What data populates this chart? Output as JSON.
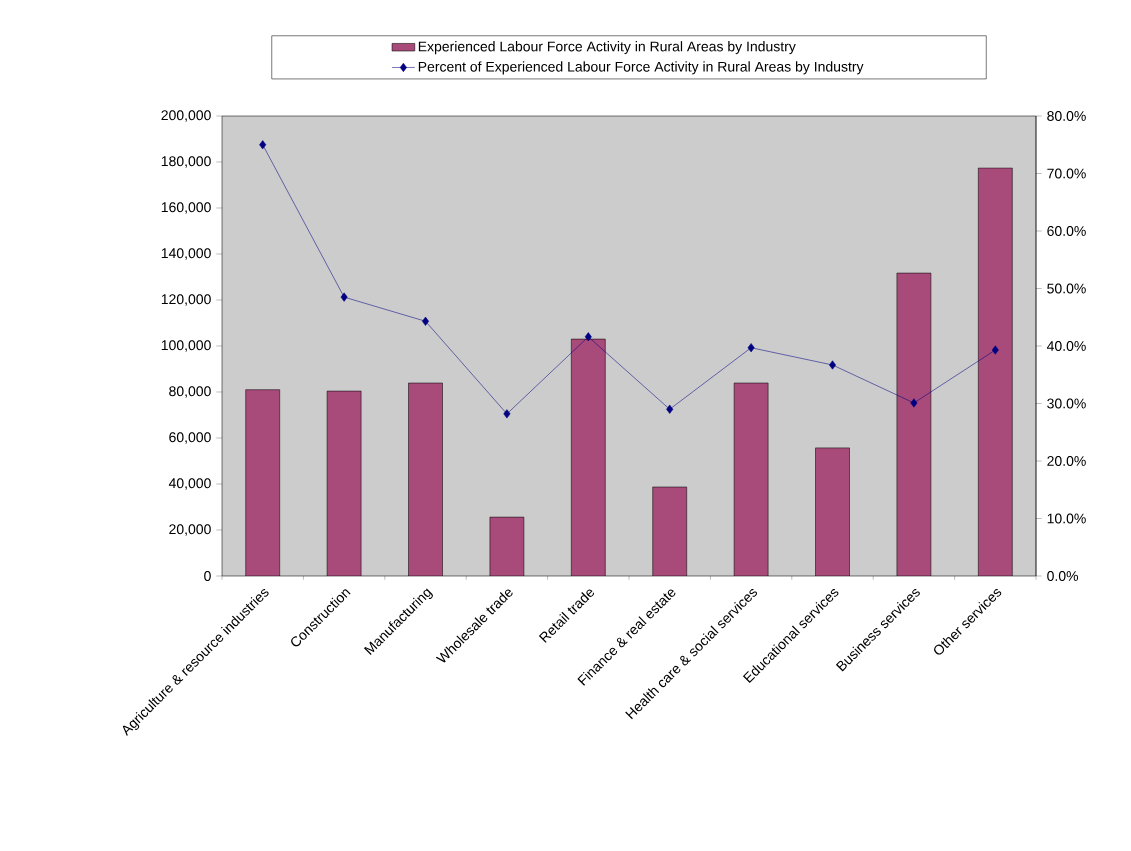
{
  "chart_data": {
    "type": "bar",
    "categories": [
      "Agriculture & resource industries",
      "Construction",
      "Manufacturing",
      "Wholesale trade",
      "Retail trade",
      "Finance & real estate",
      "Health care & social services",
      "Educational services",
      "Business services",
      "Other services"
    ],
    "series": [
      {
        "name": "Experienced Labour Force Activity in Rural Areas by Industry",
        "color": "#a84a7a",
        "values": [
          81000,
          80400,
          83900,
          25600,
          103000,
          38700,
          83900,
          55700,
          131700,
          177400
        ]
      },
      {
        "name": "Percent of Experienced Labour Force Activity in Rural Areas by Industry",
        "type": "line",
        "axis": "y2",
        "color": "#000080",
        "marker": "diamond",
        "values": [
          75.0,
          48.5,
          44.3,
          28.2,
          41.6,
          29.0,
          39.7,
          36.7,
          30.1,
          39.3
        ]
      }
    ],
    "ylim": [
      0,
      200000
    ],
    "yticks": [
      0,
      {
        "value": 20000,
        "label": "20,000"
      },
      {
        "value": 40000,
        "label": "40,000"
      },
      {
        "value": 60000,
        "label": "60,000"
      },
      {
        "value": 80000,
        "label": "80,000"
      },
      {
        "value": 100000,
        "label": "100,000"
      },
      {
        "value": 120000,
        "label": "120,000"
      },
      {
        "value": 140000,
        "label": "140,000"
      },
      {
        "value": 160000,
        "label": "160,000"
      },
      {
        "value": 180000,
        "label": "180,000"
      },
      {
        "value": 200000,
        "label": "200,000"
      }
    ],
    "y2lim": [
      0,
      80
    ],
    "y2ticks": [
      {
        "value": 0,
        "label": "0.0%"
      },
      {
        "value": 10,
        "label": "10.0%"
      },
      {
        "value": 20,
        "label": "20.0%"
      },
      {
        "value": 30,
        "label": "30.0%"
      },
      {
        "value": 40,
        "label": "40.0%"
      },
      {
        "value": 50,
        "label": "50.0%"
      },
      {
        "value": 60,
        "label": "60.0%"
      },
      {
        "value": 70,
        "label": "70.0%"
      },
      {
        "value": 80,
        "label": "80.0%"
      }
    ],
    "legend": "top",
    "grid": false
  }
}
